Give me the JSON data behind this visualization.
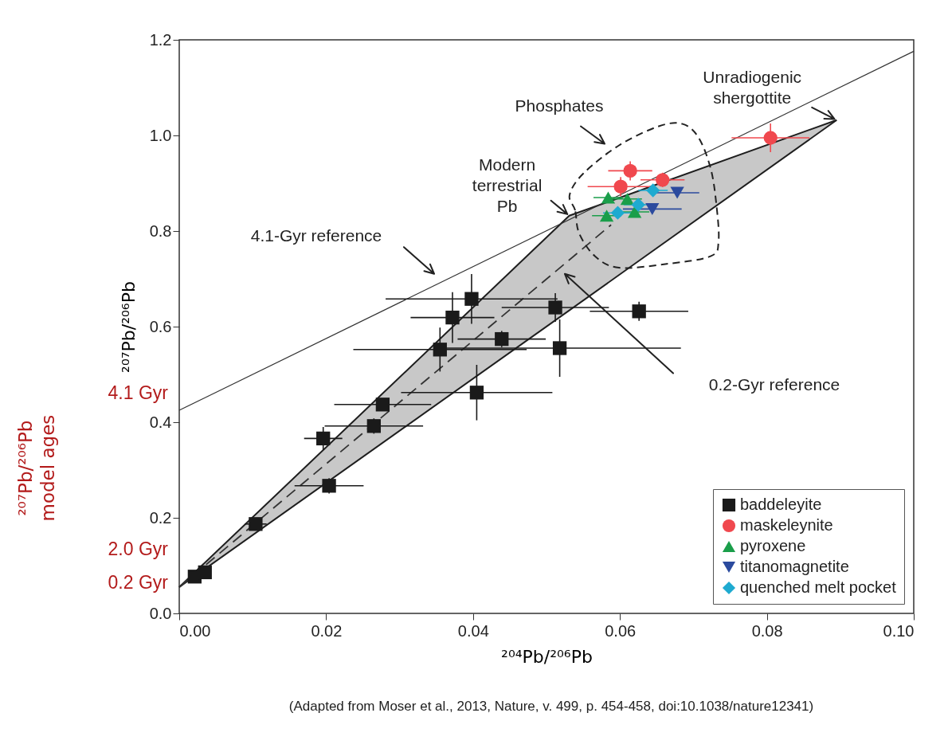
{
  "chart_data": {
    "type": "scatter",
    "xlabel": "²⁰⁴Pb/²⁰⁶Pb",
    "ylabel": "²⁰⁷Pb/²⁰⁶Pb",
    "xlim": [
      0,
      0.1
    ],
    "ylim": [
      0,
      1.2
    ],
    "xticks": [
      {
        "value": 0,
        "label": "0.00"
      },
      {
        "value": 0.02,
        "label": "0.02"
      },
      {
        "value": 0.04,
        "label": "0.04"
      },
      {
        "value": 0.06,
        "label": "0.06"
      },
      {
        "value": 0.08,
        "label": "0.08"
      },
      {
        "value": 0.1,
        "label": "0.10"
      }
    ],
    "yticks": [
      {
        "value": 0,
        "label": "0.0"
      },
      {
        "value": 0.2,
        "label": "0.2"
      },
      {
        "value": 0.4,
        "label": "0.4"
      },
      {
        "value": 0.6,
        "label": "0.6"
      },
      {
        "value": 0.8,
        "label": "0.8"
      },
      {
        "value": 1,
        "label": "1.0"
      },
      {
        "value": 1.2,
        "label": "1.2"
      }
    ],
    "grid": false,
    "legend": "bottom right",
    "annotations": [
      {
        "text": "Unradiogenic shergottite",
        "x": 0.0895,
        "y": 1.032
      },
      "Phosphates",
      {
        "text": "Modern terrestrial Pb",
        "x": 0.0531,
        "y": 0.832
      },
      "4.1-Gyr reference",
      "0.2-Gyr reference",
      "(Adapted from Moser et al., 2013, Nature, v. 499, p. 454-458, doi:10.1038/nature12341)",
      {
        "text": "4.1 Gyr",
        "x": 0,
        "y": 0.425
      },
      "2.0 Gyr",
      {
        "text": "0.2 Gyr",
        "x": 0,
        "y": 0.055
      },
      "²⁰⁷Pb/²⁰⁶Pb model ages"
    ],
    "series": [
      {
        "type": "line",
        "color": "#1e1e1e",
        "line_style": "solid",
        "x": [
          0,
          0.0531,
          0.0895
        ],
        "values": [
          0.055,
          0.832,
          1.032
        ],
        "lower": [
          0.055,
          0.634,
          1.032
        ],
        "upper": [
          0.055,
          0.832,
          1.032
        ]
      },
      {
        "type": "line",
        "color": "#333333",
        "line_style": "solid",
        "x": [
          0,
          0.1
        ],
        "values": [
          0.425,
          1.176
        ]
      },
      {
        "type": "line",
        "color": "#333333",
        "line_style": "dashed",
        "x": [
          0,
          0.0588
        ],
        "values": [
          0.055,
          0.813
        ]
      },
      {
        "name": "baddeleyite",
        "marker": "square",
        "color": "#1a1a1a",
        "x": [
          0.0021,
          0.0035,
          0.0104,
          0.0196,
          0.0204,
          0.0265,
          0.0277,
          0.0355,
          0.0372,
          0.0398,
          0.0439,
          0.0512,
          0.0518,
          0.0626,
          0.0405
        ],
        "values": [
          0.077,
          0.086,
          0.187,
          0.366,
          0.267,
          0.392,
          0.437,
          0.552,
          0.619,
          0.658,
          0.574,
          0.64,
          0.555,
          0.632,
          0.462
        ],
        "xerrors": [
          null,
          null,
          0.0015,
          0.0026,
          0.0047,
          0.0067,
          0.0066,
          0.0118,
          0.0057,
          0.0117,
          0.006,
          0.0073,
          0.0165,
          0.0067,
          0.0103
        ],
        "errors": [
          null,
          null,
          0.012,
          0.024,
          0.016,
          0.016,
          0.012,
          0.046,
          0.053,
          0.052,
          0.017,
          0.03,
          0.06,
          0.02,
          0.058
        ]
      },
      {
        "name": "maskeleynite",
        "marker": "circle",
        "color": "#f0484e",
        "x": [
          0.0805,
          0.0614,
          0.0601,
          0.0658
        ],
        "values": [
          0.995,
          0.926,
          0.893,
          0.907
        ],
        "xerrors": [
          0.0053,
          0.003,
          0.0045,
          0.003
        ],
        "errors": [
          0.03,
          0.02,
          0.02,
          0.015
        ]
      },
      {
        "name": "pyroxene",
        "marker": "triangle",
        "color": "#1a9e4a",
        "x": [
          0.0584,
          0.061,
          0.0582,
          0.062
        ],
        "values": [
          0.87,
          0.867,
          0.832,
          0.84
        ],
        "xerrors": [
          0.002,
          0.002,
          0.002,
          0.002
        ]
      },
      {
        "name": "titanomagnetite",
        "marker": "triangle-down",
        "color": "#2b4a9e",
        "x": [
          0.0678,
          0.0644
        ],
        "values": [
          0.88,
          0.846
        ],
        "xerrors": [
          0.003,
          0.004
        ]
      },
      {
        "name": "quenched melt pocket",
        "marker": "diamond",
        "color": "#1eaad0",
        "x": [
          0.0597,
          0.0625,
          0.0645
        ],
        "values": [
          0.838,
          0.855,
          0.885
        ],
        "xerrors": [
          0.002,
          0.002,
          0.002
        ]
      }
    ]
  }
}
